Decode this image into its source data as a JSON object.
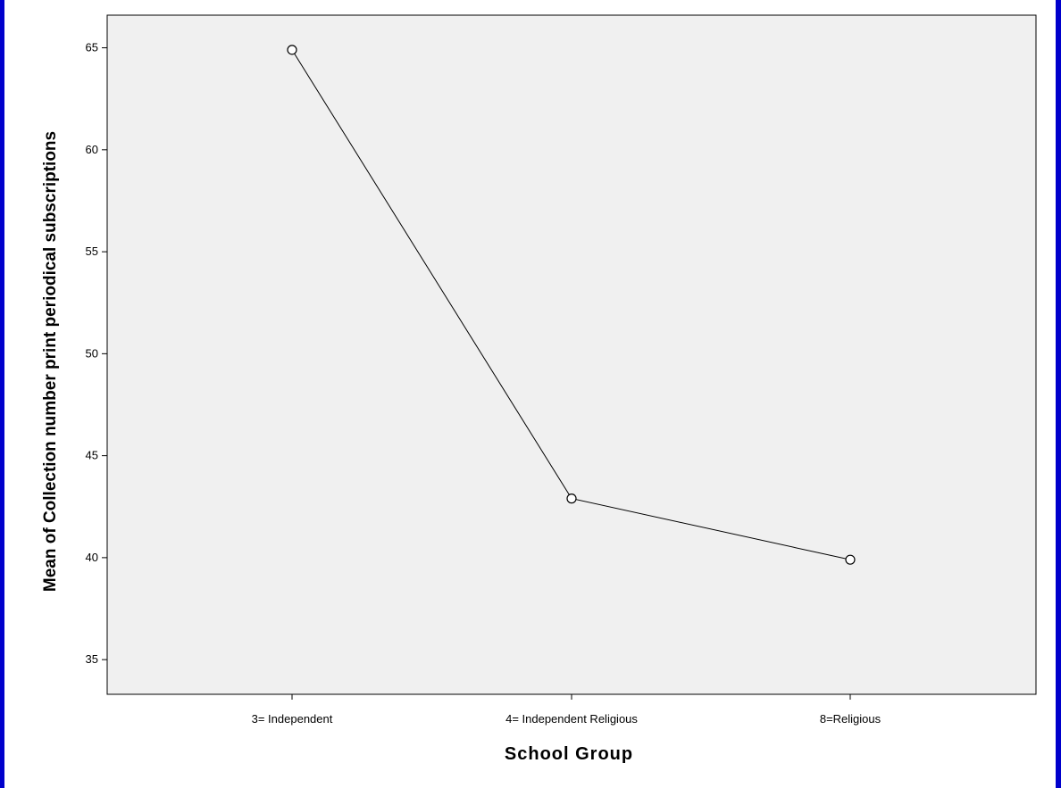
{
  "chart_data": {
    "type": "line",
    "title": "",
    "xlabel": "School Group",
    "ylabel": "Mean of Collection number print periodical subscriptions",
    "categories": [
      "3= Independent",
      "4= Independent Religious",
      "8=Religious"
    ],
    "series": [
      {
        "values": [
          64.9,
          42.9,
          39.9
        ]
      }
    ],
    "ylim": [
      33.3,
      66.6
    ],
    "yticks": [
      35,
      40,
      45,
      50,
      55,
      60,
      65
    ],
    "grid": false,
    "legend": "none",
    "colors": {
      "plot_background": "#f0f0f0",
      "line": "#000000",
      "marker_fill": "#ffffff",
      "frame_border": "#0000cc"
    }
  }
}
